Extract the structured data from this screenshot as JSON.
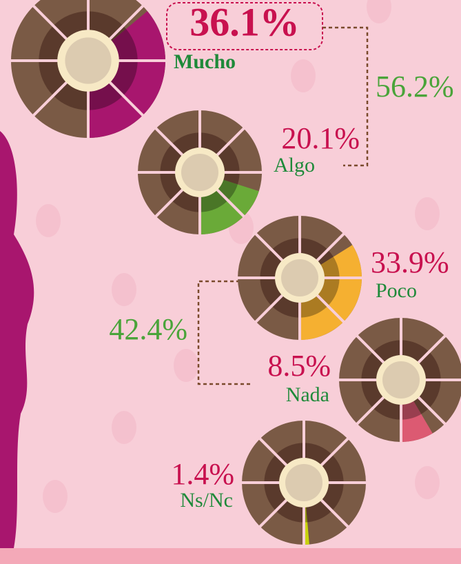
{
  "chart_data": {
    "type": "donut",
    "categories": [
      "Mucho",
      "Algo",
      "Poco",
      "Nada",
      "Ns/Nc"
    ],
    "values": [
      36.1,
      20.1,
      33.9,
      8.5,
      1.4
    ],
    "value_labels": [
      "36.1%",
      "20.1%",
      "33.9%",
      "8.5%",
      "1.4%"
    ],
    "colors": [
      "#a8166e",
      "#6aaa38",
      "#f5b031",
      "#dc5a72",
      "#c8d30f"
    ],
    "groups": [
      {
        "value": 56.2,
        "label": "56.2%"
      },
      {
        "value": 42.4,
        "label": "42.4%"
      }
    ]
  }
}
